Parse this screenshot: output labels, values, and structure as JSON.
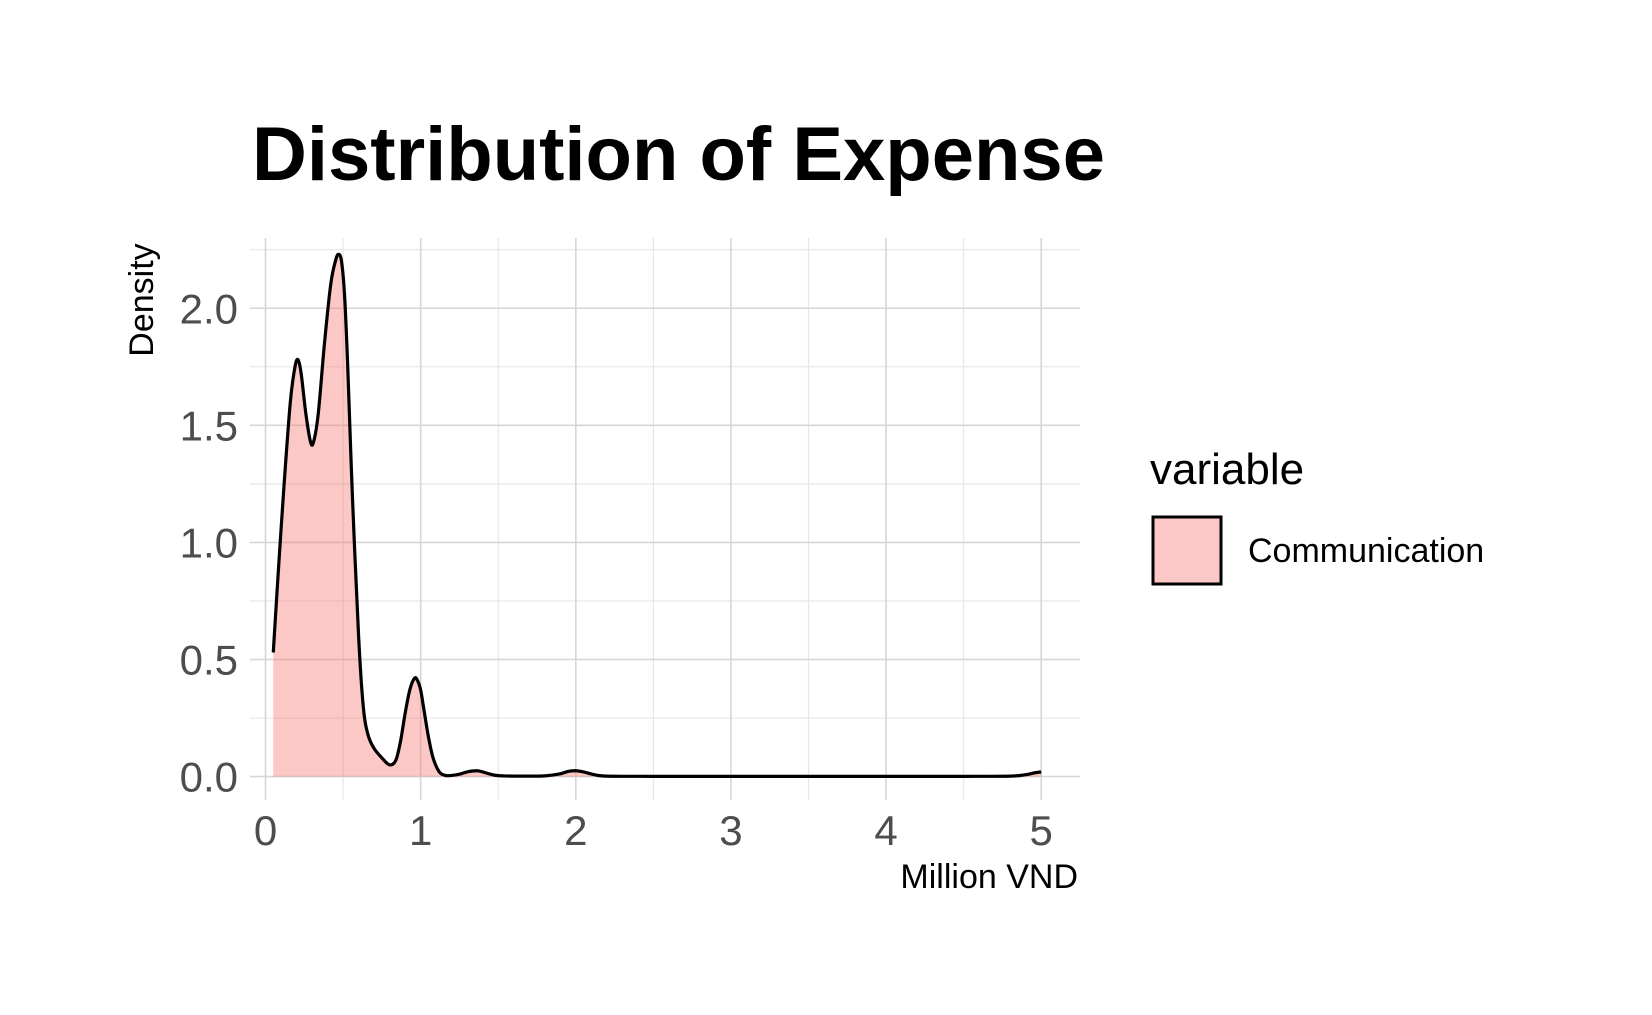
{
  "chart_data": {
    "type": "area",
    "title": "Distribution of Expense",
    "xlabel": "Million VND",
    "ylabel": "Density",
    "xlim": [
      -0.1,
      5.25
    ],
    "ylim": [
      -0.1,
      2.3
    ],
    "x_ticks": [
      0,
      1,
      2,
      3,
      4,
      5
    ],
    "x_tick_labels": [
      "0",
      "1",
      "2",
      "3",
      "4",
      "5"
    ],
    "y_ticks": [
      0,
      0.5,
      1,
      1.5,
      2
    ],
    "y_tick_labels": [
      "0.0",
      "0.5",
      "1.0",
      "1.5",
      "2.0"
    ],
    "grid": true,
    "legend": {
      "title": "variable",
      "position": "right"
    },
    "series": [
      {
        "name": "Communication",
        "fill": "#f8766d",
        "fill_opacity": 0.4,
        "line_color": "#000000",
        "x": [
          0.05,
          0.08,
          0.12,
          0.16,
          0.19,
          0.21,
          0.23,
          0.26,
          0.29,
          0.31,
          0.34,
          0.38,
          0.42,
          0.45,
          0.47,
          0.49,
          0.51,
          0.53,
          0.56,
          0.6,
          0.63,
          0.66,
          0.7,
          0.75,
          0.8,
          0.84,
          0.87,
          0.9,
          0.93,
          0.96,
          0.98,
          1.0,
          1.02,
          1.05,
          1.08,
          1.12,
          1.16,
          1.2,
          1.25,
          1.3,
          1.36,
          1.4,
          1.45,
          1.5,
          1.6,
          1.7,
          1.8,
          1.9,
          1.95,
          2.0,
          2.05,
          2.12,
          2.2,
          2.5,
          3.0,
          3.5,
          4.0,
          4.5,
          4.8,
          4.9,
          4.95,
          5.0
        ],
        "y": [
          0.53,
          0.85,
          1.25,
          1.6,
          1.75,
          1.78,
          1.72,
          1.55,
          1.43,
          1.43,
          1.55,
          1.85,
          2.1,
          2.2,
          2.23,
          2.2,
          2.05,
          1.75,
          1.2,
          0.6,
          0.3,
          0.18,
          0.12,
          0.08,
          0.05,
          0.07,
          0.15,
          0.27,
          0.37,
          0.42,
          0.41,
          0.37,
          0.29,
          0.17,
          0.08,
          0.02,
          0.005,
          0.005,
          0.01,
          0.02,
          0.025,
          0.02,
          0.01,
          0.004,
          0.002,
          0.002,
          0.003,
          0.012,
          0.022,
          0.025,
          0.02,
          0.008,
          0.002,
          0.001,
          0.001,
          0.001,
          0.001,
          0.001,
          0.002,
          0.008,
          0.015,
          0.02
        ]
      }
    ]
  }
}
